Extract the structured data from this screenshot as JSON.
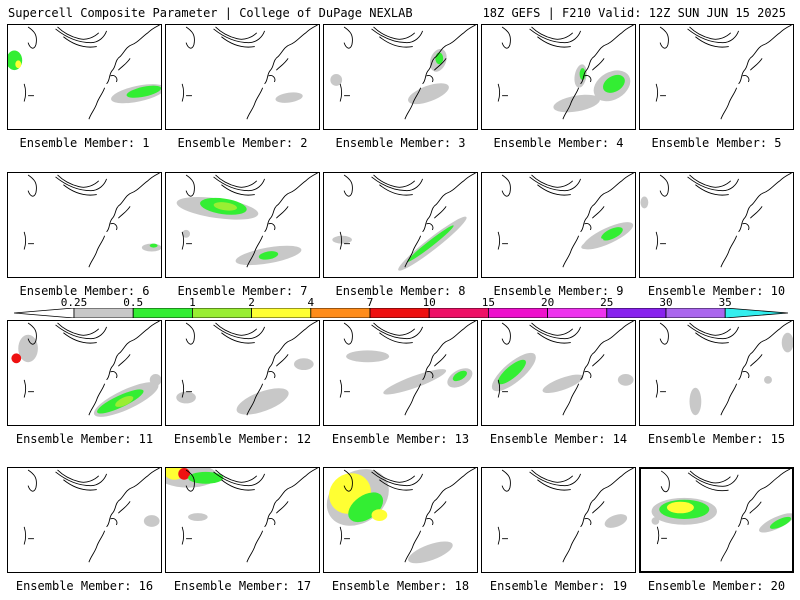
{
  "header": {
    "title": "Supercell Composite Parameter | College of DuPage NEXLAB",
    "run_info": "18Z GEFS | F210 Valid: 12Z SUN JUN 15 2025"
  },
  "colorbar": {
    "thresholds": [
      "0.25",
      "0.5",
      "1",
      "2",
      "4",
      "7",
      "10",
      "15",
      "20",
      "25",
      "30",
      "35"
    ],
    "colors": [
      "#ffffff",
      "#c8c8c8",
      "#33ee33",
      "#99ee33",
      "#ffff33",
      "#ff8c1a",
      "#ee1111",
      "#ee1166",
      "#ee11cc",
      "#ee33ee",
      "#8822ee",
      "#aa66ee",
      "#33eeee"
    ]
  },
  "colors": {
    "low": "#c8c8c8",
    "green": "#33ee33",
    "lightgreen": "#99ee33",
    "yellow": "#ffff33",
    "red": "#ee1111"
  },
  "panels": [
    {
      "label": "Ensemble Member: 1"
    },
    {
      "label": "Ensemble Member: 2"
    },
    {
      "label": "Ensemble Member: 3"
    },
    {
      "label": "Ensemble Member: 4"
    },
    {
      "label": "Ensemble Member: 5"
    },
    {
      "label": "Ensemble Member: 6"
    },
    {
      "label": "Ensemble Member: 7"
    },
    {
      "label": "Ensemble Member: 8"
    },
    {
      "label": "Ensemble Member: 9"
    },
    {
      "label": "Ensemble Member: 10"
    },
    {
      "label": "Ensemble Member: 11"
    },
    {
      "label": "Ensemble Member: 12"
    },
    {
      "label": "Ensemble Member: 13"
    },
    {
      "label": "Ensemble Member: 14"
    },
    {
      "label": "Ensemble Member: 15"
    },
    {
      "label": "Ensemble Member: 16"
    },
    {
      "label": "Ensemble Member: 17"
    },
    {
      "label": "Ensemble Member: 18"
    },
    {
      "label": "Ensemble Member: 19"
    },
    {
      "label": "Ensemble Member: 20",
      "selected": true
    }
  ]
}
